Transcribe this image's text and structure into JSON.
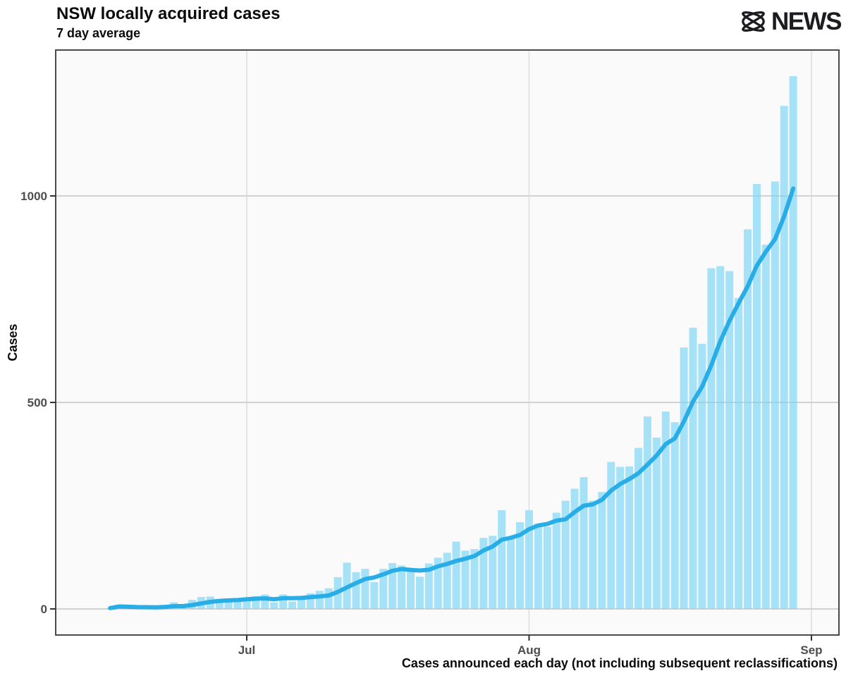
{
  "header": {
    "title": "NSW locally acquired cases",
    "subtitle": "7 day average",
    "brand": {
      "mark": "abc-lissajous-icon",
      "wordmark": "NEWS"
    }
  },
  "chart_data": {
    "type": "bar",
    "title": "NSW locally acquired cases",
    "subtitle": "7 day average",
    "ylabel": "Cases",
    "xlabel": "Cases announced each day (not including subsequent reclassifications)",
    "y_ticks": [
      0,
      500,
      1000
    ],
    "ylim": [
      0,
      1352
    ],
    "grid": "major-only",
    "legend": "none",
    "x_ticks": [
      {
        "label": "Jul",
        "day": 15
      },
      {
        "label": "Aug",
        "day": 46
      },
      {
        "label": "Sep",
        "day": 77
      }
    ],
    "series": [
      {
        "name": "Cases announced each day",
        "type": "bar",
        "values": [
          2,
          10,
          4,
          2,
          3,
          2,
          10,
          16,
          11,
          22,
          29,
          30,
          18,
          19,
          22,
          24,
          31,
          35,
          16,
          35,
          18,
          27,
          38,
          44,
          50,
          77,
          112,
          89,
          97,
          65,
          97,
          111,
          105,
          98,
          78,
          110,
          124,
          136,
          163,
          141,
          145,
          172,
          177,
          239,
          170,
          210,
          239,
          207,
          199,
          233,
          262,
          291,
          319,
          262,
          283,
          356,
          344,
          345,
          390,
          466,
          415,
          478,
          452,
          633,
          681,
          642,
          825,
          830,
          818,
          753,
          919,
          1029,
          882,
          1035,
          1218,
          1290
        ]
      },
      {
        "name": "7 day average",
        "type": "line",
        "derived_from": "trailing 7-day mean of bar series",
        "end_value": 1018
      }
    ],
    "colors": {
      "bar": "#A5E2F8",
      "line": "#29ADE6",
      "panel_bg": "#FAFAFA",
      "gridline": "#E4E4E4",
      "axis": "#4a4a4a",
      "tick_text": "#4d4d4d"
    }
  }
}
